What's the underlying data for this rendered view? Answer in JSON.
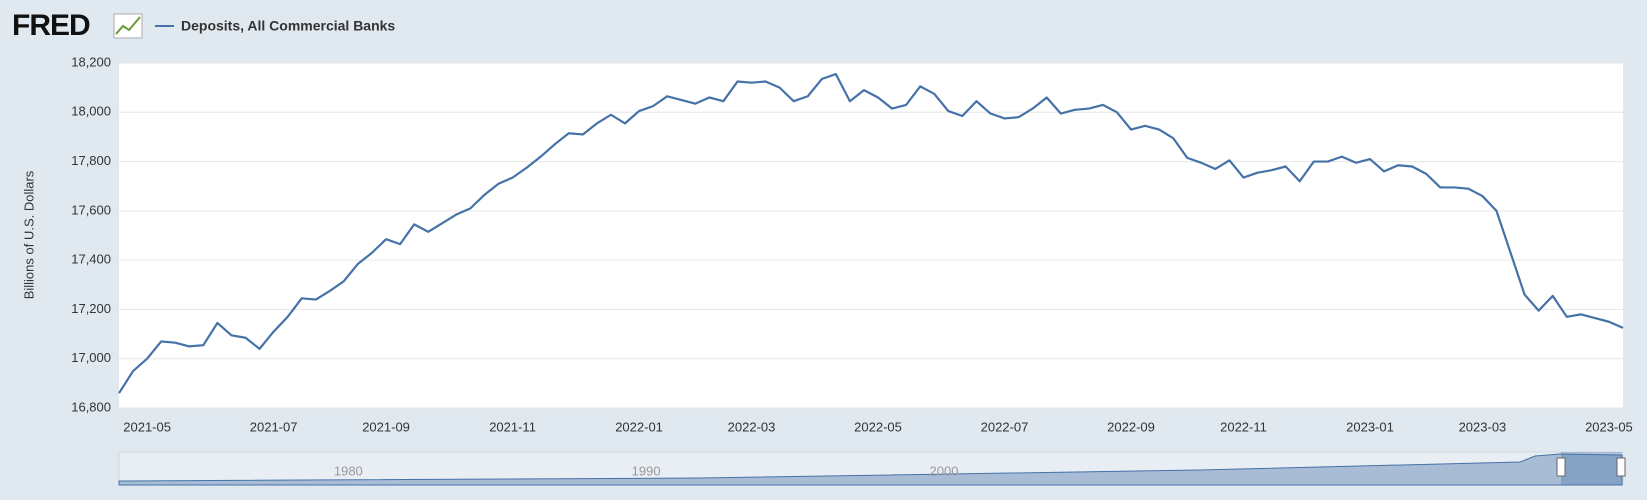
{
  "logo": "FRED",
  "chart_data": {
    "type": "line",
    "y_label": "Billions of U.S. Dollars",
    "categories": [
      null,
      null,
      "2021-05",
      null,
      null,
      null,
      null,
      null,
      null,
      null,
      null,
      "2021-07",
      null,
      null,
      null,
      null,
      null,
      null,
      null,
      "2021-09",
      null,
      null,
      null,
      null,
      null,
      null,
      null,
      null,
      "2021-11",
      null,
      null,
      null,
      null,
      null,
      null,
      null,
      null,
      "2022-01",
      null,
      null,
      null,
      null,
      null,
      null,
      null,
      "2022-03",
      null,
      null,
      null,
      null,
      null,
      null,
      null,
      null,
      "2022-05",
      null,
      null,
      null,
      null,
      null,
      null,
      null,
      null,
      "2022-07",
      null,
      null,
      null,
      null,
      null,
      null,
      null,
      null,
      "2022-09",
      null,
      null,
      null,
      null,
      null,
      null,
      null,
      "2022-11",
      null,
      null,
      null,
      null,
      null,
      null,
      null,
      null,
      "2023-01",
      null,
      null,
      null,
      null,
      null,
      null,
      null,
      "2023-03",
      null,
      null,
      null,
      null,
      null,
      null,
      null,
      null,
      "2023-05",
      null
    ],
    "series": [
      {
        "name": "Deposits, All Commercial Banks",
        "color": "#4572a7",
        "values": [
          16860,
          16950,
          17000,
          17070,
          17065,
          17050,
          17055,
          17145,
          17095,
          17085,
          17040,
          17110,
          17170,
          17245,
          17240,
          17275,
          17315,
          17385,
          17430,
          17485,
          17465,
          17545,
          17515,
          17550,
          17585,
          17610,
          17665,
          17710,
          17735,
          17775,
          17820,
          17870,
          17915,
          17910,
          17955,
          17990,
          17955,
          18005,
          18025,
          18065,
          18050,
          18035,
          18060,
          18045,
          18125,
          18120,
          18125,
          18100,
          18045,
          18065,
          18135,
          18155,
          18045,
          18090,
          18060,
          18015,
          18030,
          18105,
          18075,
          18005,
          17985,
          18045,
          17995,
          17975,
          17980,
          18015,
          18060,
          17995,
          18010,
          18015,
          18030,
          18000,
          17930,
          17945,
          17930,
          17895,
          17815,
          17795,
          17770,
          17805,
          17735,
          17755,
          17765,
          17780,
          17720,
          17800,
          17800,
          17820,
          17795,
          17810,
          17760,
          17785,
          17780,
          17750,
          17695,
          17695,
          17690,
          17660,
          17600,
          17430,
          17260,
          17195,
          17255,
          17170,
          17180,
          17165,
          17150,
          17125
        ]
      }
    ],
    "ylim": [
      16800,
      18200
    ],
    "yticks": [
      {
        "value": 16800,
        "label": "16,800"
      },
      {
        "value": 17000,
        "label": "17,000"
      },
      {
        "value": 17200,
        "label": "17,200"
      },
      {
        "value": 17400,
        "label": "17,400"
      },
      {
        "value": 17600,
        "label": "17,600"
      },
      {
        "value": 17800,
        "label": "17,800"
      },
      {
        "value": 18000,
        "label": "18,000"
      },
      {
        "value": 18200,
        "label": "18,200"
      }
    ],
    "grid": true,
    "navigator_xlim": [
      1972.3,
      2022.8
    ],
    "navigator_xticks": [
      1980,
      1990,
      2000
    ]
  }
}
